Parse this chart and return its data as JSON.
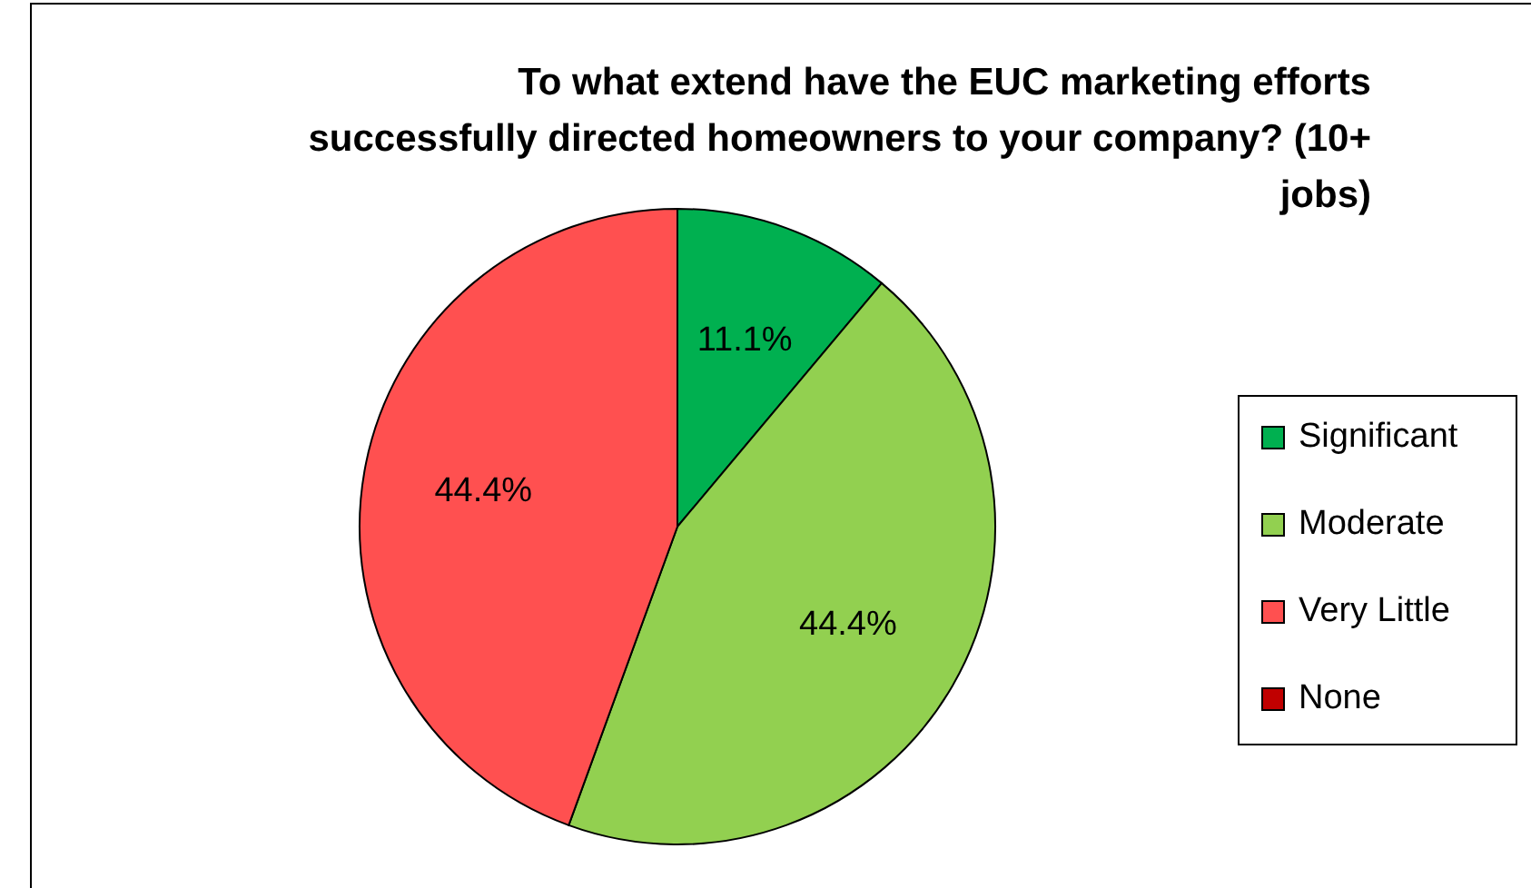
{
  "chart_data": {
    "type": "pie",
    "title": "To what extend have the EUC marketing efforts successfully directed homeowners to your company? (10+ jobs)",
    "categories": [
      "Significant",
      "Moderate",
      "Very Little",
      "None"
    ],
    "values": [
      11.1,
      44.4,
      44.4,
      0
    ],
    "colors": [
      "#00b050",
      "#92d050",
      "#ff5050",
      "#c00000"
    ],
    "value_labels": [
      "11.1%",
      "44.4%",
      "44.4%",
      null
    ],
    "legend": "right"
  }
}
